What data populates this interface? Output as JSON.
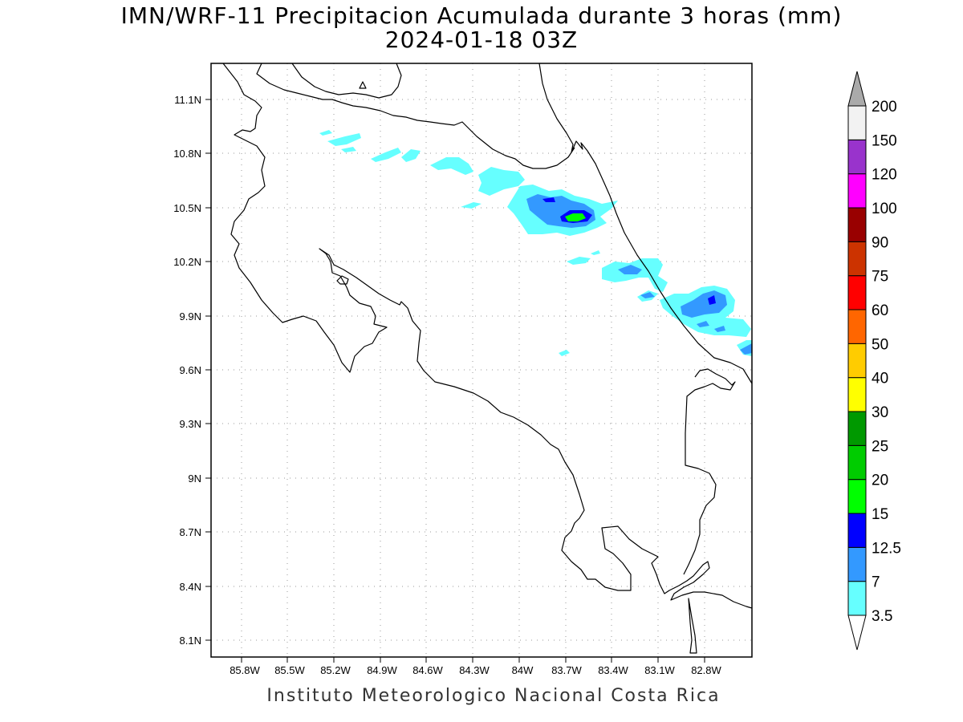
{
  "title": {
    "line1": "IMN/WRF-11 Precipitacion Acumulada durante 3 horas (mm)",
    "line2": "2024-01-18 03Z"
  },
  "footer": "Instituto Meteorologico Nacional Costa Rica",
  "map": {
    "lon_range": [
      -85.97,
      -82.67
    ],
    "lat_range": [
      8.0,
      11.3
    ],
    "lon_ticks": [
      "85.8W",
      "85.5W",
      "85.2W",
      "84.9W",
      "84.6W",
      "84.3W",
      "84W",
      "83.7W",
      "83.4W",
      "83.1W",
      "82.8W"
    ],
    "lat_ticks": [
      "11.1N",
      "10.8N",
      "10.5N",
      "10.2N",
      "9.9N",
      "9.6N",
      "9.3N",
      "9N",
      "8.7N",
      "8.4N",
      "8.1N"
    ],
    "grid": "dotted"
  },
  "colorbar": {
    "levels": [
      "3.5",
      "7",
      "12.5",
      "15",
      "20",
      "25",
      "30",
      "40",
      "50",
      "60",
      "75",
      "90",
      "100",
      "120",
      "150",
      "200"
    ],
    "colors": [
      "#66ffff",
      "#3399ff",
      "#0000ff",
      "#00ff00",
      "#00cc00",
      "#009900",
      "#ffff00",
      "#ffcc00",
      "#ff6600",
      "#ff0000",
      "#cc3300",
      "#990000",
      "#ff00ff",
      "#9933cc",
      "#f2f2f2",
      "#aaaaaa"
    ]
  },
  "colors": {
    "light_cyan": "#66ffff",
    "light_blue": "#3399ff",
    "blue": "#0000ff",
    "green": "#00ff00",
    "coast": "#000000"
  }
}
